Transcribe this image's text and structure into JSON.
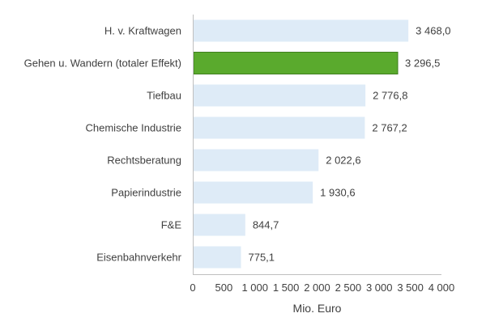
{
  "chart_data": {
    "type": "bar",
    "orientation": "horizontal",
    "title": "",
    "xlabel": "Mio. Euro",
    "ylabel": "",
    "xlim": [
      0,
      4000
    ],
    "xticks": [
      0,
      500,
      1000,
      1500,
      2000,
      2500,
      3000,
      3500,
      4000
    ],
    "xtick_labels": [
      "0",
      "500",
      "1 000",
      "1 500",
      "2 000",
      "2 500",
      "3 000",
      "3 500",
      "4 000"
    ],
    "grid": false,
    "legend": "none",
    "categories": [
      "H. v. Kraftwagen",
      "Gehen u. Wandern (totaler Effekt)",
      "Tiefbau",
      "Chemische Industrie",
      "Rechtsberatung",
      "Papierindustrie",
      "F&E",
      "Eisenbahnverkehr"
    ],
    "values": [
      3468.0,
      3296.5,
      2776.8,
      2767.2,
      2022.6,
      1930.6,
      844.7,
      775.1
    ],
    "value_labels": [
      "3 468,0",
      "3 296,5",
      "2 776,8",
      "2 767,2",
      "2 022,6",
      "1 930,6",
      "844,7",
      "775,1"
    ],
    "highlight_index": 1,
    "colors": {
      "bar": "#deebf7",
      "highlight_fill": "#5aaa2d",
      "highlight_stroke": "#3f7f1f",
      "axis": "#bfbfbf",
      "text": "#404040"
    }
  }
}
